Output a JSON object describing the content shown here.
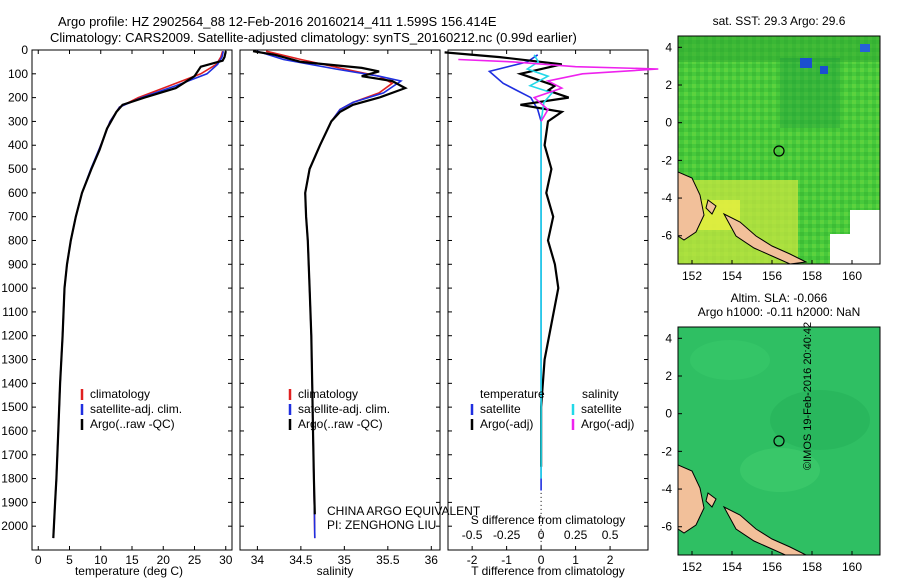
{
  "header": {
    "line1": "Argo profile: HZ 2902564_88 12-Feb-2016 20160214_411 1.599S 156.414E",
    "line2": "Climatology: CARS2009. Satellite-adjusted climatology: synTS_20160212.nc (0.99d earlier)"
  },
  "watermark": "©IMOS 19-Feb-2016 20:40:42",
  "colors": {
    "climatology": "#e02020",
    "satellite": "#1f2fe0",
    "argo": "#000000",
    "satellite_salinity": "#22d8e8",
    "argo_salinity_adj": "#ee22ee",
    "land": "#f2c09a"
  },
  "chart_data": [
    {
      "type": "line",
      "id": "temperature",
      "xlabel": "temperature (deg C)",
      "ylabel": "",
      "xlim": [
        -1,
        31
      ],
      "ylim": [
        0,
        2100
      ],
      "y_inverted": true,
      "xticks": [
        0,
        5,
        10,
        15,
        20,
        25,
        30
      ],
      "yticks": [
        0,
        100,
        200,
        300,
        400,
        500,
        600,
        700,
        800,
        900,
        1000,
        1100,
        1200,
        1300,
        1400,
        1500,
        1600,
        1700,
        1800,
        1900,
        2000
      ],
      "legend": [
        "climatology",
        "satellite-adj. clim.",
        "Argo(..raw -QC)"
      ],
      "legend_position": "lower-right",
      "series": [
        {
          "name": "climatology",
          "color_key": "climatology",
          "x": [
            29.5,
            29.2,
            28.5,
            26,
            21,
            16,
            13,
            11.5,
            10,
            8.5,
            7,
            6,
            5.2,
            4.6,
            4.2,
            3.9,
            3.5,
            3.2,
            2.9,
            2.7,
            2.5,
            2.4
          ],
          "y": [
            5,
            30,
            60,
            100,
            150,
            200,
            240,
            300,
            400,
            500,
            600,
            700,
            800,
            900,
            1000,
            1200,
            1400,
            1600,
            1800,
            1900,
            2000,
            2050
          ]
        },
        {
          "name": "satellite-adj. clim.",
          "color_key": "satellite",
          "x": [
            29.6,
            29.4,
            28.7,
            27,
            22,
            16.5,
            13,
            11.5,
            10,
            8.4,
            7,
            6,
            5.2,
            4.6,
            4.2,
            3.9,
            3.5,
            3.2,
            2.9,
            2.7,
            2.5,
            2.4
          ],
          "y": [
            5,
            30,
            60,
            100,
            150,
            200,
            240,
            300,
            400,
            500,
            600,
            700,
            800,
            900,
            1000,
            1200,
            1400,
            1600,
            1800,
            1900,
            2000,
            2050
          ]
        },
        {
          "name": "Argo(..raw -QC)",
          "color_key": "argo",
          "x": [
            30,
            29.8,
            29.5,
            26,
            25,
            22,
            17,
            13.5,
            12.5,
            11,
            9.8,
            8.5,
            7,
            6,
            5.2,
            4.6,
            4.2,
            3.9,
            3.5,
            3.2,
            2.9,
            2.7,
            2.5,
            2.4
          ],
          "y": [
            5,
            30,
            45,
            70,
            110,
            160,
            200,
            230,
            260,
            330,
            420,
            500,
            600,
            700,
            800,
            900,
            1000,
            1200,
            1400,
            1600,
            1800,
            1900,
            2000,
            2050
          ]
        }
      ]
    },
    {
      "type": "line",
      "id": "salinity",
      "xlabel": "salinity",
      "xlim": [
        33.8,
        36.1
      ],
      "ylim": [
        0,
        2100
      ],
      "y_inverted": true,
      "xticks": [
        34,
        34.5,
        35,
        35.5,
        36
      ],
      "legend": [
        "climatology",
        "satellite-adj. clim.",
        "Argo(..raw -QC)"
      ],
      "legend_position": "lower-right",
      "annotation_lines": [
        "CHINA ARGO EQUIVALENT",
        "PI: ZENGHONG LIU"
      ],
      "series": [
        {
          "name": "climatology",
          "color_key": "climatology",
          "x": [
            34.1,
            34.5,
            35.0,
            35.4,
            35.55,
            35.4,
            35.1,
            34.95,
            34.85,
            34.72,
            34.6,
            34.55,
            34.56,
            34.58,
            34.6,
            34.62,
            34.63,
            34.64,
            34.65,
            34.66
          ],
          "y": [
            5,
            40,
            80,
            110,
            140,
            180,
            220,
            250,
            300,
            400,
            500,
            600,
            700,
            800,
            1000,
            1200,
            1400,
            1600,
            1800,
            2050
          ]
        },
        {
          "name": "satellite-adj. clim.",
          "color_key": "satellite",
          "x": [
            34.0,
            34.3,
            34.9,
            35.4,
            35.65,
            35.45,
            35.1,
            34.95,
            34.85,
            34.72,
            34.6,
            34.55,
            34.56,
            34.58,
            34.6,
            34.62,
            34.63,
            34.64,
            34.65,
            34.66
          ],
          "y": [
            5,
            40,
            80,
            110,
            130,
            180,
            220,
            250,
            300,
            400,
            500,
            600,
            700,
            800,
            1000,
            1200,
            1400,
            1600,
            1800,
            2050
          ]
        },
        {
          "name": "Argo(..raw -QC)",
          "color_key": "argo",
          "x": [
            33.95,
            34.2,
            34.5,
            35.2,
            35.4,
            35.2,
            35.55,
            35.7,
            35.4,
            35.1,
            34.95,
            34.85,
            34.72,
            34.6,
            34.55,
            34.56,
            34.58,
            34.6,
            34.62,
            34.63,
            34.64,
            34.65,
            34.66
          ],
          "y": [
            5,
            20,
            50,
            75,
            90,
            110,
            130,
            160,
            200,
            230,
            260,
            300,
            400,
            500,
            600,
            700,
            800,
            1000,
            1200,
            1400,
            1600,
            1800,
            1950
          ]
        }
      ]
    },
    {
      "type": "line",
      "id": "difference",
      "xlabel": "T difference from climatology",
      "xlabel_top": "S difference from climatology",
      "xlim": [
        -2.7,
        3.1
      ],
      "xticks": [
        -2,
        -1,
        0,
        1,
        2
      ],
      "xticks_top": [
        -0.5,
        -0.25,
        0,
        0.25,
        0.5
      ],
      "ylim": [
        0,
        2100
      ],
      "y_inverted": true,
      "legend_temperature_title": "temperature",
      "legend_salinity_title": "salinity",
      "legend_position": "lower-right",
      "series": [
        {
          "name": "satellite",
          "group": "temperature",
          "color_key": "satellite",
          "x": [
            -0.1,
            -0.4,
            -1.5,
            -1.1,
            -0.7,
            -0.3,
            -0.1,
            0,
            0,
            0,
            0,
            0,
            0,
            0,
            0,
            0
          ],
          "y": [
            20,
            50,
            90,
            140,
            170,
            200,
            250,
            300,
            400,
            600,
            800,
            1000,
            1200,
            1400,
            1600,
            1850
          ]
        },
        {
          "name": "Argo(-adj)",
          "group": "temperature",
          "color_key": "argo",
          "x": [
            -2.8,
            -1.2,
            0.6,
            -0.6,
            -0.2,
            0.4,
            0.2,
            0.8,
            -0.6,
            0.6,
            0.2,
            0.1,
            0.3,
            0.15,
            0.35,
            0.2,
            0.4,
            0.5,
            0.1,
            0,
            0
          ],
          "y": [
            10,
            30,
            60,
            100,
            120,
            150,
            170,
            200,
            230,
            260,
            300,
            400,
            500,
            600,
            700,
            800,
            900,
            1000,
            1300,
            1500,
            1750
          ]
        },
        {
          "name": "satellite",
          "group": "salinity",
          "color_key": "satellite_salinity",
          "x": [
            -0.05,
            -0.02,
            -0.1,
            0.05,
            -0.08,
            0.08,
            0.02,
            0,
            0,
            0,
            0,
            0
          ],
          "y": [
            20,
            50,
            80,
            110,
            150,
            180,
            220,
            300,
            500,
            800,
            1200,
            1800
          ]
        },
        {
          "name": "Argo(-adj)",
          "group": "salinity",
          "color_key": "argo_salinity_adj",
          "x": [
            -0.6,
            -0.2,
            0.25,
            0.85,
            0.3,
            0.05,
            0.15,
            -0.05,
            0.05,
            0
          ],
          "y": [
            40,
            50,
            70,
            80,
            100,
            130,
            160,
            200,
            250,
            300
          ]
        }
      ]
    },
    {
      "type": "heatmap",
      "id": "sst-map",
      "title": "sat. SST: 29.3 Argo: 29.6",
      "xticks": [
        152,
        154,
        156,
        158,
        160
      ],
      "yticks": [
        4,
        2,
        0,
        -2,
        -4,
        -6
      ],
      "xlim": [
        151.3,
        161.4
      ],
      "ylim": [
        -7.5,
        4.6
      ],
      "argo_position": {
        "lon": 156.414,
        "lat": -1.599
      }
    },
    {
      "type": "heatmap",
      "id": "sla-map",
      "title_lines": [
        "Altim. SLA: -0.066",
        "Argo h1000: -0.11 h2000: NaN"
      ],
      "xticks": [
        152,
        154,
        156,
        158,
        160
      ],
      "yticks": [
        4,
        2,
        0,
        -2,
        -4,
        -6
      ],
      "xlim": [
        151.3,
        161.4
      ],
      "ylim": [
        -7.5,
        4.6
      ],
      "argo_position": {
        "lon": 156.414,
        "lat": -1.599
      }
    }
  ]
}
